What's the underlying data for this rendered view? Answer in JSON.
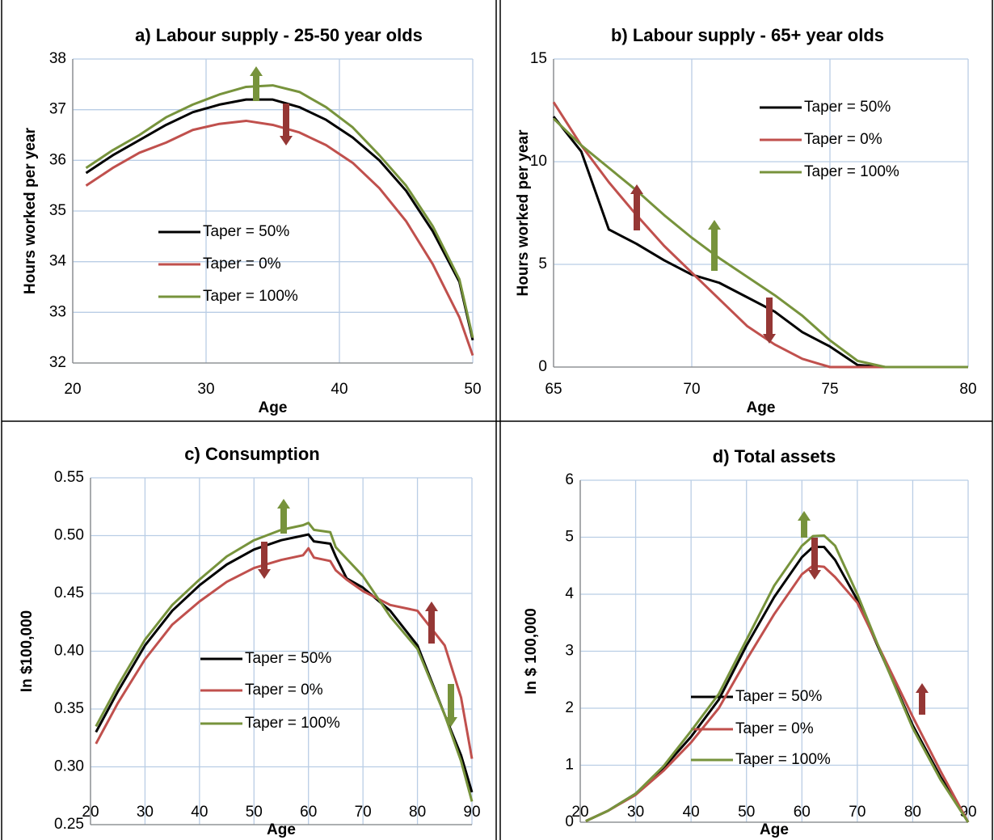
{
  "chart_data": [
    {
      "type": "line",
      "title": "a) Labour supply - 25-50 year olds",
      "x_label": "Age",
      "y_label": "Hours worked per year",
      "x": [
        21,
        23,
        25,
        27,
        29,
        31,
        33,
        35,
        37,
        39,
        41,
        43,
        45,
        47,
        49,
        50
      ],
      "xlim": [
        20,
        50
      ],
      "xticks": [
        20,
        30,
        40,
        50
      ],
      "ylim": [
        32,
        38
      ],
      "yticks": [
        32,
        33,
        34,
        35,
        36,
        37,
        38
      ],
      "grid": true,
      "series": [
        {
          "name": "Taper = 50%",
          "color": "#000000",
          "values": [
            35.75,
            36.1,
            36.4,
            36.7,
            36.95,
            37.1,
            37.2,
            37.2,
            37.05,
            36.8,
            36.45,
            36.0,
            35.4,
            34.6,
            33.6,
            32.45
          ]
        },
        {
          "name": "Taper = 0%",
          "color": "#c0504d",
          "values": [
            35.5,
            35.85,
            36.15,
            36.35,
            36.6,
            36.72,
            36.78,
            36.7,
            36.55,
            36.3,
            35.95,
            35.45,
            34.8,
            33.95,
            32.9,
            32.15
          ]
        },
        {
          "name": "Taper = 100%",
          "color": "#77933c",
          "values": [
            35.85,
            36.2,
            36.5,
            36.85,
            37.1,
            37.3,
            37.45,
            37.48,
            37.35,
            37.05,
            36.65,
            36.1,
            35.5,
            34.7,
            33.65,
            32.5
          ]
        }
      ]
    },
    {
      "type": "line",
      "title": "b) Labour supply - 65+ year olds",
      "x_label": "Age",
      "y_label": "Hours worked per year",
      "x": [
        65,
        66,
        67,
        68,
        69,
        70,
        71,
        72,
        73,
        74,
        75,
        76,
        77,
        78,
        79,
        80
      ],
      "xlim": [
        65,
        80
      ],
      "xticks": [
        65,
        70,
        75,
        80
      ],
      "ylim": [
        0,
        15
      ],
      "yticks": [
        0,
        5,
        10,
        15
      ],
      "grid": true,
      "series": [
        {
          "name": "Taper = 50%",
          "color": "#000000",
          "values": [
            12.2,
            10.5,
            6.7,
            6.0,
            5.2,
            4.5,
            4.1,
            3.4,
            2.7,
            1.7,
            1.0,
            0.1,
            0,
            0,
            0,
            0
          ]
        },
        {
          "name": "Taper = 0%",
          "color": "#c0504d",
          "values": [
            12.9,
            10.8,
            9.0,
            7.4,
            5.9,
            4.6,
            3.3,
            2.0,
            1.1,
            0.4,
            0,
            0,
            0,
            0,
            0,
            0
          ]
        },
        {
          "name": "Taper = 100%",
          "color": "#77933c",
          "values": [
            12.1,
            10.8,
            9.7,
            8.6,
            7.4,
            6.3,
            5.3,
            4.4,
            3.5,
            2.5,
            1.3,
            0.3,
            0,
            0,
            0,
            0
          ]
        }
      ]
    },
    {
      "type": "line",
      "title": "c) Consumption",
      "x_label": "Age",
      "y_label": "In $100,000",
      "x": [
        21,
        25,
        30,
        35,
        40,
        45,
        50,
        55,
        59,
        60,
        61,
        64,
        65,
        67,
        70,
        75,
        80,
        85,
        88,
        90
      ],
      "xlim": [
        20,
        90
      ],
      "xticks": [
        20,
        30,
        40,
        50,
        60,
        70,
        80,
        90
      ],
      "ylim": [
        0.25,
        0.55
      ],
      "yticks": [
        0.25,
        {
          "value": 0.3,
          "label": "0.30"
        },
        0.35,
        {
          "value": 0.4,
          "label": "0.40"
        },
        0.45,
        {
          "value": 0.5,
          "label": "0.50"
        },
        0.55
      ],
      "grid": true,
      "series": [
        {
          "name": "Taper = 50%",
          "color": "#000000",
          "values": [
            0.33,
            0.365,
            0.405,
            0.435,
            0.457,
            0.475,
            0.488,
            0.496,
            0.5,
            0.501,
            0.495,
            0.493,
            0.482,
            0.463,
            0.455,
            0.435,
            0.405,
            0.345,
            0.31,
            0.278
          ]
        },
        {
          "name": "Taper = 0%",
          "color": "#c0504d",
          "values": [
            0.32,
            0.355,
            0.393,
            0.423,
            0.443,
            0.46,
            0.472,
            0.479,
            0.483,
            0.489,
            0.481,
            0.478,
            0.47,
            0.462,
            0.452,
            0.44,
            0.435,
            0.405,
            0.36,
            0.307
          ]
        },
        {
          "name": "Taper = 100%",
          "color": "#77933c",
          "values": [
            0.335,
            0.37,
            0.41,
            0.44,
            0.462,
            0.482,
            0.496,
            0.505,
            0.509,
            0.511,
            0.505,
            0.503,
            0.49,
            0.48,
            0.465,
            0.43,
            0.402,
            0.345,
            0.305,
            0.27
          ]
        }
      ]
    },
    {
      "type": "line",
      "title": "d) Total assets",
      "x_label": "Age",
      "y_label": "In $ 100,000",
      "x": [
        21,
        25,
        30,
        35,
        40,
        45,
        50,
        55,
        60,
        62,
        64,
        66,
        70,
        75,
        80,
        85,
        90
      ],
      "xlim": [
        20,
        90
      ],
      "xticks": [
        20,
        30,
        40,
        50,
        60,
        70,
        80,
        90
      ],
      "ylim": [
        0,
        6
      ],
      "yticks": [
        0,
        1,
        2,
        3,
        4,
        5,
        6
      ],
      "grid": true,
      "series": [
        {
          "name": "Taper = 50%",
          "color": "#000000",
          "values": [
            0.02,
            0.2,
            0.5,
            0.95,
            1.5,
            2.15,
            3.1,
            3.95,
            4.65,
            4.83,
            4.83,
            4.6,
            3.9,
            2.8,
            1.7,
            0.8,
            0
          ]
        },
        {
          "name": "Taper = 0%",
          "color": "#c0504d",
          "values": [
            0.02,
            0.2,
            0.48,
            0.9,
            1.4,
            2.0,
            2.85,
            3.65,
            4.35,
            4.5,
            4.48,
            4.3,
            3.85,
            2.85,
            1.85,
            0.9,
            0
          ]
        },
        {
          "name": "Taper = 100%",
          "color": "#77933c",
          "values": [
            0.02,
            0.2,
            0.5,
            0.98,
            1.6,
            2.25,
            3.2,
            4.15,
            4.85,
            5.02,
            5.03,
            4.85,
            4.0,
            2.8,
            1.65,
            0.75,
            0
          ]
        }
      ]
    }
  ]
}
